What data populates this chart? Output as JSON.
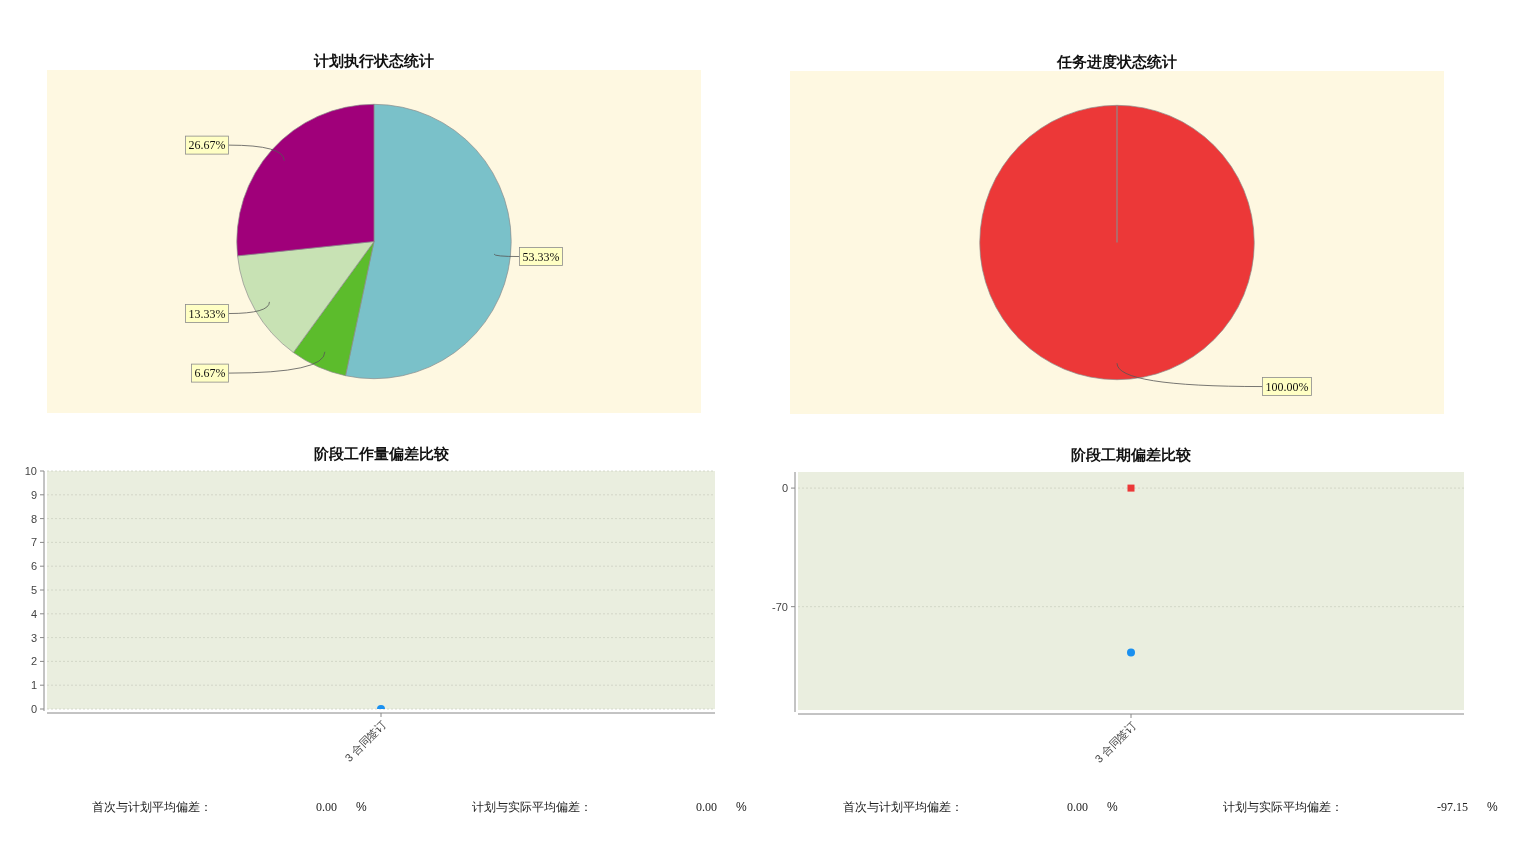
{
  "chart_data": [
    {
      "type": "pie",
      "title": "计划执行状态统计",
      "categories": [
        null,
        null,
        null,
        null
      ],
      "values": [
        53.33,
        6.67,
        13.33,
        26.67
      ],
      "colors": [
        "#7ac1c9",
        "#5cbc2c",
        "#c8e2b4",
        "#a0007a"
      ],
      "value_labels": [
        "53.33%",
        "6.67%",
        "13.33%",
        "26.67%"
      ]
    },
    {
      "type": "pie",
      "title": "任务进度状态统计",
      "categories": [
        null
      ],
      "values": [
        100
      ],
      "colors": [
        "#ec3838"
      ],
      "value_labels": [
        "100.00%"
      ]
    },
    {
      "type": "scatter",
      "title": "阶段工作量偏差比较",
      "categories": [
        "3 合同签订"
      ],
      "series": [
        {
          "color": "#ec3838",
          "marker": "square",
          "values": [
            null
          ]
        },
        {
          "color": "#1a90f0",
          "marker": "circle",
          "values": [
            0
          ]
        }
      ],
      "ylim": [
        0,
        10
      ],
      "yticks": [
        0,
        1,
        2,
        3,
        4,
        5,
        6,
        7,
        8,
        9,
        10
      ],
      "grid": "y",
      "annotations": [
        "首次与计划平均偏差：",
        "0.00",
        "%",
        "计划与实际平均偏差：",
        "0.00",
        "%"
      ]
    },
    {
      "type": "scatter",
      "title": "阶段工期偏差比较",
      "categories": [
        "3 合同签订"
      ],
      "series": [
        {
          "color": "#ec3838",
          "marker": "square",
          "values": [
            0
          ]
        },
        {
          "color": "#1a90f0",
          "marker": "circle",
          "values": [
            -97
          ]
        }
      ],
      "ylim": [
        -131,
        9.5
      ],
      "yticks": [
        -70,
        0
      ],
      "grid": "y",
      "annotations": [
        "首次与计划平均偏差：",
        "0.00",
        "%",
        "计划与实际平均偏差：",
        "-97.15",
        "%"
      ]
    }
  ]
}
